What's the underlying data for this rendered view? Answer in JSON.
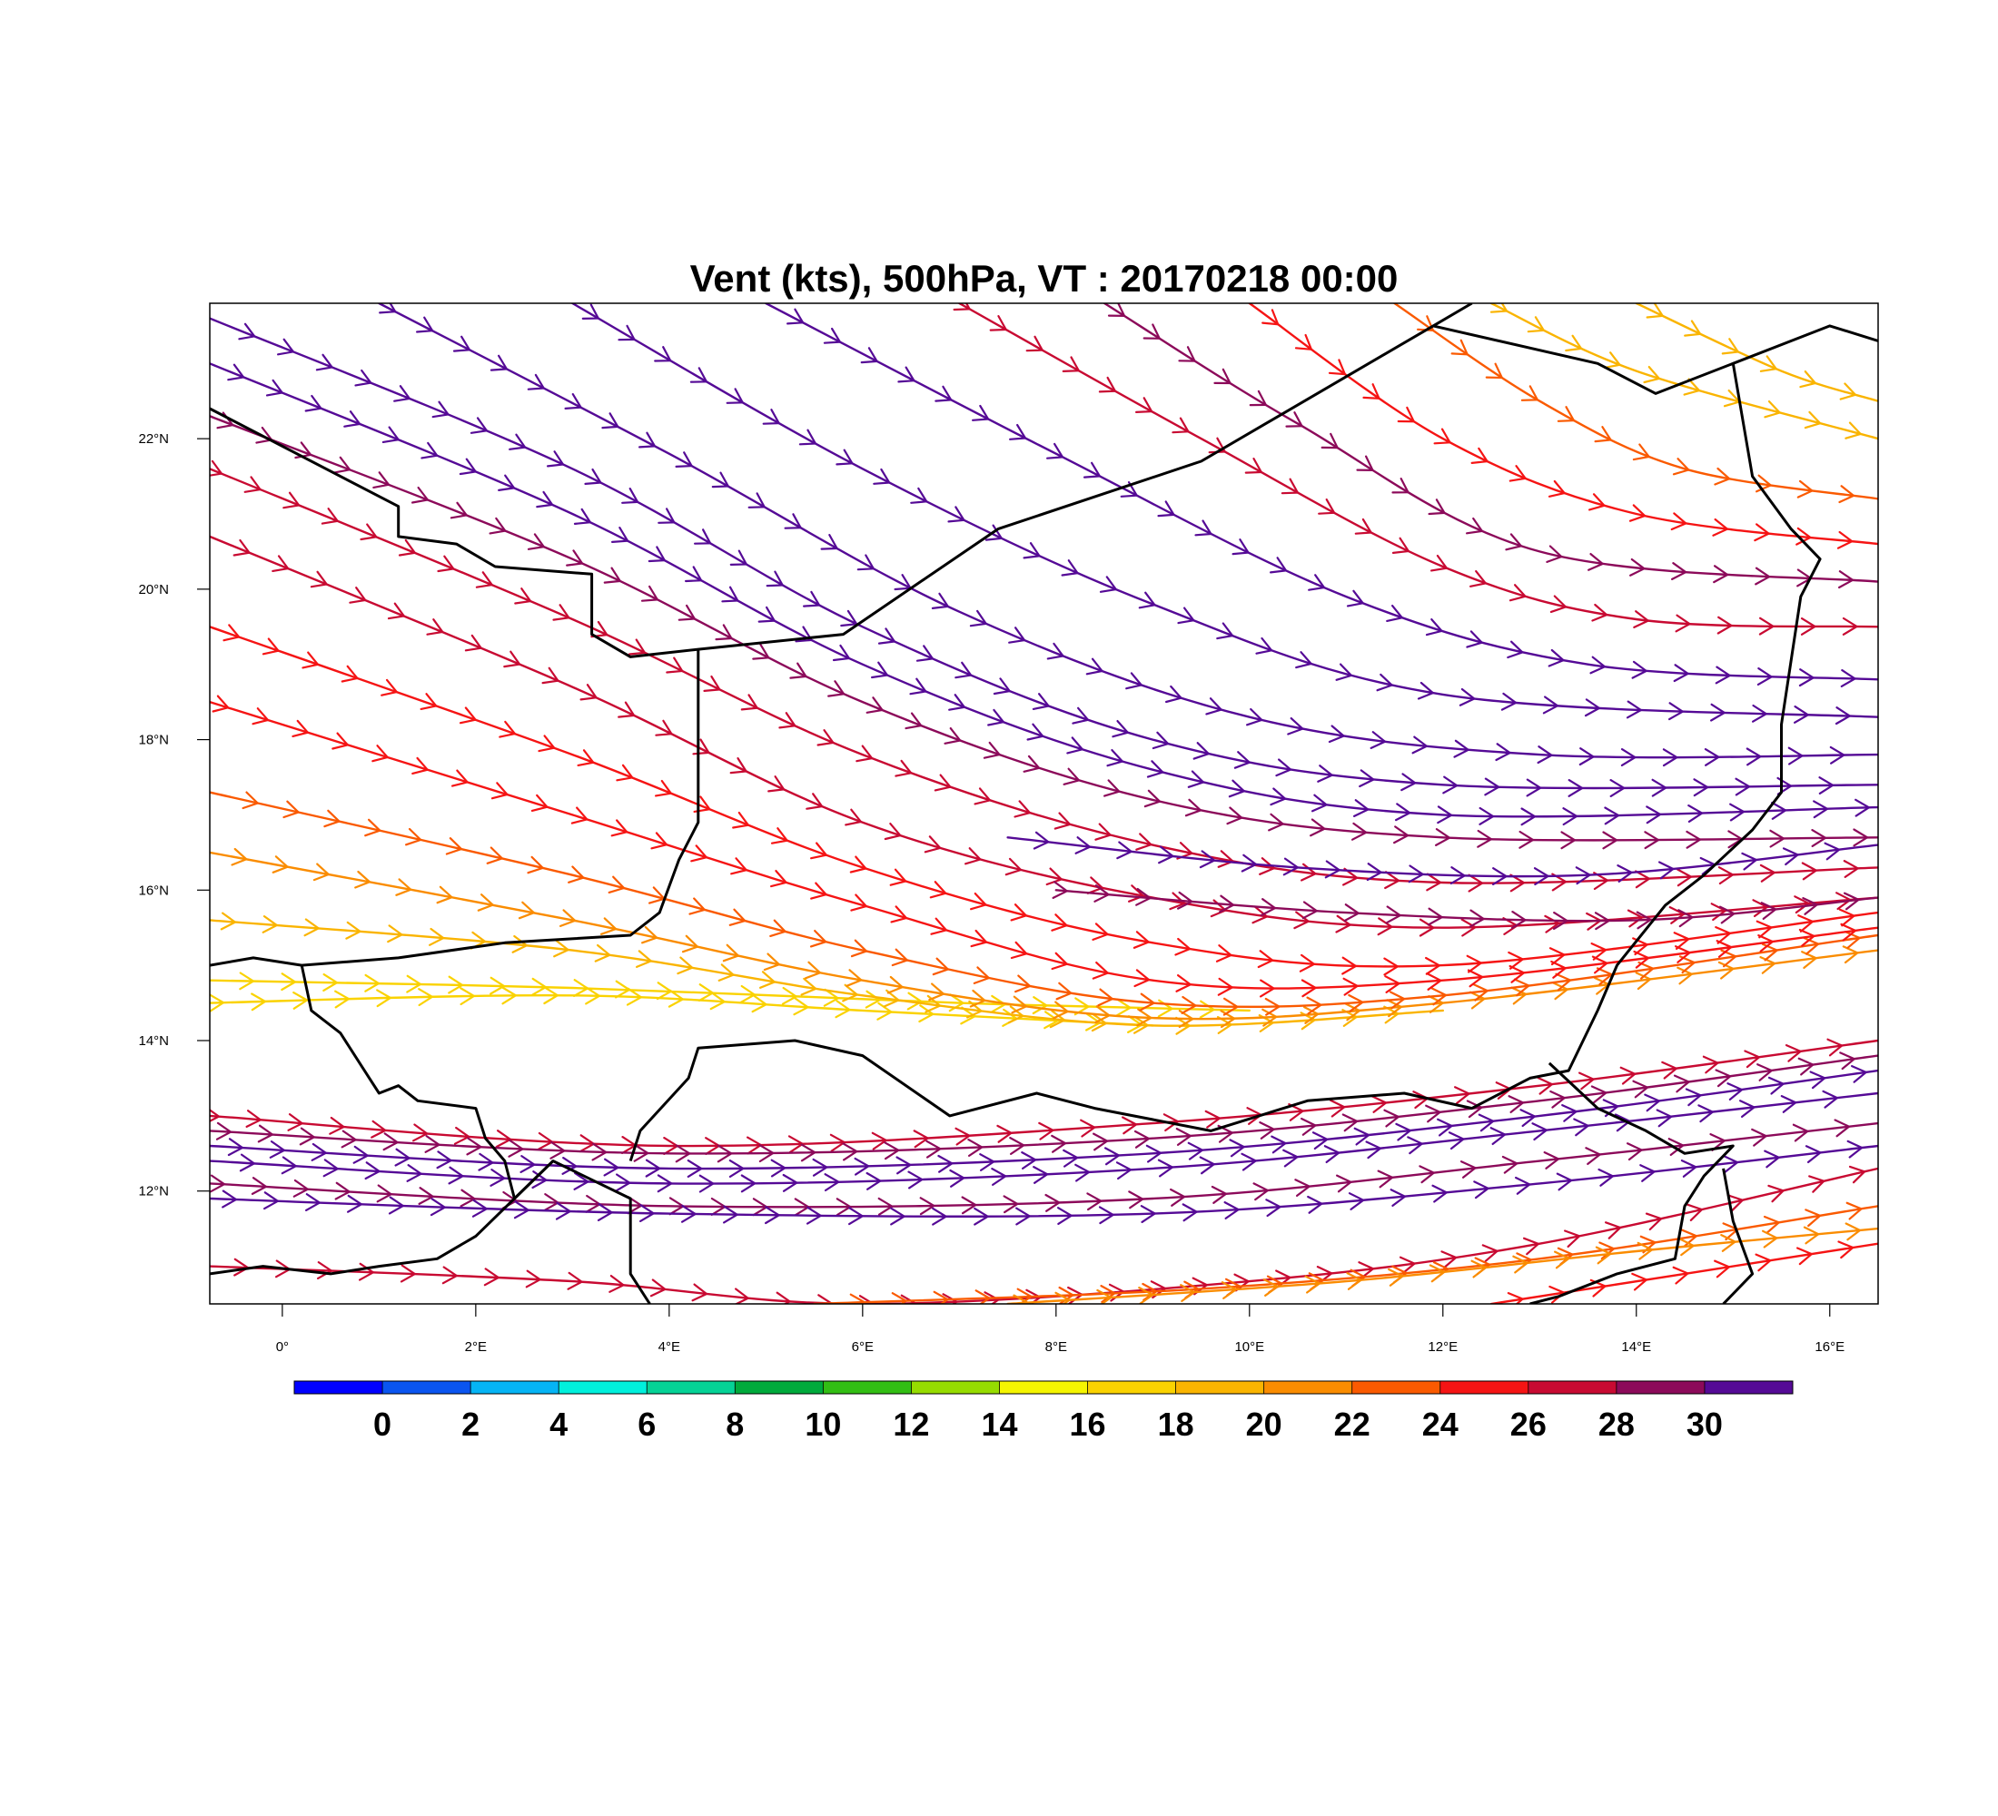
{
  "title": "Vent (kts), 500hPa, VT : 20170218  00:00",
  "map": {
    "lon_range": [
      -0.75,
      16.5
    ],
    "lat_range": [
      10.5,
      23.8
    ],
    "lon_ticks": [
      {
        "value": 0,
        "label": "0°"
      },
      {
        "value": 2,
        "label": "2°E"
      },
      {
        "value": 4,
        "label": "4°E"
      },
      {
        "value": 6,
        "label": "6°E"
      },
      {
        "value": 8,
        "label": "8°E"
      },
      {
        "value": 10,
        "label": "10°E"
      },
      {
        "value": 12,
        "label": "12°E"
      },
      {
        "value": 14,
        "label": "14°E"
      },
      {
        "value": 16,
        "label": "16°E"
      }
    ],
    "lat_ticks": [
      {
        "value": 12,
        "label": "12°N"
      },
      {
        "value": 14,
        "label": "14°N"
      },
      {
        "value": 16,
        "label": "16°N"
      },
      {
        "value": 18,
        "label": "18°N"
      },
      {
        "value": 20,
        "label": "20°N"
      },
      {
        "value": 22,
        "label": "22°N"
      }
    ],
    "boundaries": [
      [
        [
          -0.75,
          22.4
        ],
        [
          1.2,
          21.1
        ],
        [
          1.2,
          20.7
        ],
        [
          1.8,
          20.6
        ],
        [
          2.2,
          20.3
        ],
        [
          3.2,
          20.2
        ],
        [
          3.2,
          19.9
        ],
        [
          3.2,
          19.4
        ],
        [
          3.6,
          19.1
        ],
        [
          4.3,
          19.2
        ],
        [
          5.8,
          19.4
        ],
        [
          7.4,
          20.8
        ],
        [
          9.5,
          21.7
        ],
        [
          11.9,
          23.5
        ],
        [
          12.3,
          23.8
        ]
      ],
      [
        [
          11.9,
          23.5
        ],
        [
          13.6,
          23.0
        ],
        [
          14.2,
          22.6
        ],
        [
          15.0,
          23.0
        ],
        [
          16.0,
          23.5
        ],
        [
          16.5,
          23.3
        ]
      ],
      [
        [
          15.0,
          23.0
        ],
        [
          15.2,
          21.5
        ],
        [
          15.6,
          20.8
        ],
        [
          15.9,
          20.4
        ],
        [
          15.7,
          19.9
        ],
        [
          15.5,
          18.2
        ],
        [
          15.5,
          17.3
        ],
        [
          15.2,
          16.8
        ],
        [
          14.7,
          16.2
        ],
        [
          14.3,
          15.8
        ],
        [
          13.8,
          15.0
        ],
        [
          13.6,
          14.4
        ]
      ],
      [
        [
          4.3,
          19.2
        ],
        [
          4.3,
          16.9
        ],
        [
          4.1,
          16.4
        ],
        [
          3.9,
          15.7
        ],
        [
          3.6,
          15.4
        ],
        [
          2.3,
          15.3
        ],
        [
          1.2,
          15.1
        ],
        [
          0.2,
          15.0
        ],
        [
          -0.3,
          15.1
        ],
        [
          -0.75,
          15.0
        ]
      ],
      [
        [
          0.2,
          15.0
        ],
        [
          0.3,
          14.4
        ],
        [
          0.6,
          14.1
        ],
        [
          0.9,
          13.5
        ],
        [
          1.0,
          13.3
        ],
        [
          1.2,
          13.4
        ],
        [
          1.4,
          13.2
        ],
        [
          2.0,
          13.1
        ],
        [
          2.1,
          12.7
        ],
        [
          2.3,
          12.4
        ],
        [
          2.4,
          11.9
        ],
        [
          2.8,
          12.4
        ],
        [
          3.6,
          11.9
        ],
        [
          3.6,
          11.5
        ],
        [
          3.6,
          10.9
        ],
        [
          3.8,
          10.5
        ]
      ],
      [
        [
          3.6,
          12.4
        ],
        [
          3.7,
          12.8
        ],
        [
          4.2,
          13.5
        ],
        [
          4.3,
          13.9
        ],
        [
          5.3,
          14.0
        ],
        [
          6.0,
          13.8
        ],
        [
          6.9,
          13.0
        ],
        [
          7.8,
          13.3
        ],
        [
          8.4,
          13.1
        ],
        [
          9.6,
          12.8
        ],
        [
          10.6,
          13.2
        ],
        [
          11.6,
          13.3
        ],
        [
          12.3,
          13.1
        ],
        [
          12.9,
          13.5
        ],
        [
          13.3,
          13.6
        ],
        [
          13.6,
          14.4
        ]
      ],
      [
        [
          -0.75,
          10.9
        ],
        [
          -0.2,
          11.0
        ],
        [
          0.5,
          10.9
        ],
        [
          1.0,
          11.0
        ],
        [
          1.6,
          11.1
        ],
        [
          2.0,
          11.4
        ],
        [
          2.8,
          12.4
        ]
      ],
      [
        [
          13.1,
          13.7
        ],
        [
          13.6,
          13.1
        ],
        [
          14.1,
          12.8
        ],
        [
          14.5,
          12.5
        ],
        [
          15.0,
          12.6
        ],
        [
          14.7,
          12.2
        ],
        [
          14.5,
          11.8
        ],
        [
          14.4,
          11.1
        ],
        [
          13.8,
          10.9
        ],
        [
          13.2,
          10.6
        ],
        [
          12.9,
          10.5
        ]
      ],
      [
        [
          14.9,
          12.3
        ],
        [
          15.0,
          11.6
        ],
        [
          15.2,
          10.9
        ],
        [
          14.9,
          10.5
        ]
      ]
    ]
  },
  "streamlines": [
    {
      "speed": 26,
      "points": [
        [
          -0.75,
          13.0
        ],
        [
          4.0,
          12.6
        ],
        [
          9.0,
          12.9
        ],
        [
          13.0,
          13.4
        ],
        [
          16.5,
          14.0
        ]
      ]
    },
    {
      "speed": 29,
      "points": [
        [
          -0.75,
          12.8
        ],
        [
          4.0,
          12.5
        ],
        [
          9.0,
          12.7
        ],
        [
          13.0,
          13.2
        ],
        [
          16.5,
          13.8
        ]
      ]
    },
    {
      "speed": 31,
      "points": [
        [
          -0.75,
          12.6
        ],
        [
          4.0,
          12.3
        ],
        [
          9.0,
          12.5
        ],
        [
          13.0,
          13.0
        ],
        [
          16.5,
          13.6
        ]
      ]
    },
    {
      "speed": 31,
      "points": [
        [
          -0.75,
          12.4
        ],
        [
          4.0,
          12.1
        ],
        [
          9.0,
          12.3
        ],
        [
          13.0,
          12.8
        ],
        [
          16.5,
          13.3
        ]
      ]
    },
    {
      "speed": 29,
      "points": [
        [
          -0.75,
          12.1
        ],
        [
          4.0,
          11.8
        ],
        [
          9.0,
          11.9
        ],
        [
          13.0,
          12.4
        ],
        [
          16.5,
          12.9
        ]
      ]
    },
    {
      "speed": 31,
      "points": [
        [
          -0.75,
          11.9
        ],
        [
          4.0,
          11.7
        ],
        [
          9.0,
          11.7
        ],
        [
          13.0,
          12.1
        ],
        [
          16.5,
          12.6
        ]
      ]
    },
    {
      "speed": 26,
      "points": [
        [
          -0.75,
          11.0
        ],
        [
          3.0,
          10.8
        ],
        [
          6.0,
          10.5
        ],
        [
          10.0,
          10.8
        ],
        [
          13.0,
          11.3
        ],
        [
          16.5,
          12.3
        ]
      ]
    },
    {
      "speed": 23,
      "points": [
        [
          5.5,
          10.5
        ],
        [
          9.5,
          10.7
        ],
        [
          13.0,
          11.1
        ],
        [
          16.5,
          11.8
        ]
      ]
    },
    {
      "speed": 20,
      "points": [
        [
          7.5,
          10.5
        ],
        [
          11.0,
          10.8
        ],
        [
          14.0,
          11.2
        ],
        [
          16.5,
          11.5
        ]
      ]
    },
    {
      "speed": 24,
      "points": [
        [
          12.5,
          10.5
        ],
        [
          14.5,
          10.9
        ],
        [
          16.5,
          11.3
        ]
      ]
    },
    {
      "speed": 16,
      "points": [
        [
          -0.75,
          14.8
        ],
        [
          3.0,
          14.7
        ],
        [
          7.0,
          14.5
        ],
        [
          10.0,
          14.4
        ]
      ]
    },
    {
      "speed": 17,
      "points": [
        [
          -0.75,
          14.5
        ],
        [
          3.0,
          14.6
        ],
        [
          6.0,
          14.4
        ],
        [
          9.0,
          14.2
        ]
      ]
    },
    {
      "speed": 19,
      "points": [
        [
          -0.75,
          15.6
        ],
        [
          3.0,
          15.2
        ],
        [
          6.0,
          14.6
        ],
        [
          9.0,
          14.2
        ],
        [
          12.0,
          14.4
        ]
      ]
    },
    {
      "speed": 21,
      "points": [
        [
          -0.75,
          16.5
        ],
        [
          3.0,
          15.6
        ],
        [
          6.0,
          14.8
        ],
        [
          9.0,
          14.3
        ],
        [
          12.0,
          14.5
        ],
        [
          16.5,
          15.2
        ]
      ]
    },
    {
      "speed": 22,
      "points": [
        [
          -0.75,
          17.3
        ],
        [
          3.0,
          16.2
        ],
        [
          6.0,
          15.2
        ],
        [
          9.0,
          14.5
        ],
        [
          12.0,
          14.6
        ],
        [
          16.5,
          15.4
        ]
      ]
    },
    {
      "speed": 25,
      "points": [
        [
          -0.75,
          18.5
        ],
        [
          3.0,
          17.0
        ],
        [
          6.0,
          15.8
        ],
        [
          9.0,
          14.8
        ],
        [
          12.0,
          14.8
        ],
        [
          16.5,
          15.5
        ]
      ]
    },
    {
      "speed": 25,
      "points": [
        [
          -0.75,
          19.5
        ],
        [
          3.0,
          17.8
        ],
        [
          6.0,
          16.3
        ],
        [
          9.0,
          15.3
        ],
        [
          12.0,
          15.0
        ],
        [
          16.5,
          15.7
        ]
      ]
    },
    {
      "speed": 27,
      "points": [
        [
          -0.75,
          20.7
        ],
        [
          3.0,
          18.7
        ],
        [
          6.0,
          16.9
        ],
        [
          9.0,
          15.9
        ],
        [
          12.0,
          15.5
        ],
        [
          16.5,
          15.9
        ]
      ]
    },
    {
      "speed": 27,
      "points": [
        [
          -0.75,
          21.6
        ],
        [
          3.0,
          19.6
        ],
        [
          6.0,
          17.8
        ],
        [
          9.0,
          16.6
        ],
        [
          12.0,
          16.1
        ],
        [
          16.5,
          16.3
        ]
      ]
    },
    {
      "speed": 29,
      "points": [
        [
          -0.75,
          22.3
        ],
        [
          3.0,
          20.4
        ],
        [
          6.0,
          18.5
        ],
        [
          9.0,
          17.2
        ],
        [
          12.0,
          16.7
        ],
        [
          16.5,
          16.7
        ]
      ]
    },
    {
      "speed": 30,
      "points": [
        [
          -0.75,
          23.0
        ],
        [
          3.0,
          21.0
        ],
        [
          6.0,
          19.0
        ],
        [
          9.0,
          17.6
        ],
        [
          12.0,
          17.0
        ],
        [
          16.5,
          17.1
        ]
      ]
    },
    {
      "speed": 31,
      "points": [
        [
          -0.75,
          23.6
        ],
        [
          3.0,
          21.6
        ],
        [
          6.0,
          19.5
        ],
        [
          9.0,
          18.0
        ],
        [
          12.0,
          17.4
        ],
        [
          16.5,
          17.4
        ]
      ]
    },
    {
      "speed": 31,
      "points": [
        [
          1.0,
          23.8
        ],
        [
          4.0,
          21.8
        ],
        [
          7.0,
          19.7
        ],
        [
          10.0,
          18.3
        ],
        [
          13.0,
          17.8
        ],
        [
          16.5,
          17.8
        ]
      ]
    },
    {
      "speed": 30,
      "points": [
        [
          3.0,
          23.8
        ],
        [
          6.0,
          21.6
        ],
        [
          9.0,
          19.8
        ],
        [
          12.0,
          18.6
        ],
        [
          16.5,
          18.3
        ]
      ]
    },
    {
      "speed": 31,
      "points": [
        [
          5.0,
          23.8
        ],
        [
          8.0,
          21.8
        ],
        [
          11.0,
          19.9
        ],
        [
          13.5,
          19.0
        ],
        [
          16.5,
          18.8
        ]
      ]
    },
    {
      "speed": 27,
      "points": [
        [
          7.0,
          23.8
        ],
        [
          9.5,
          22.0
        ],
        [
          12.0,
          20.3
        ],
        [
          14.0,
          19.6
        ],
        [
          16.5,
          19.5
        ]
      ]
    },
    {
      "speed": 28,
      "points": [
        [
          8.5,
          23.8
        ],
        [
          10.5,
          22.2
        ],
        [
          13.0,
          20.5
        ],
        [
          16.5,
          20.1
        ]
      ]
    },
    {
      "speed": 24,
      "points": [
        [
          10.0,
          23.8
        ],
        [
          12.0,
          22.0
        ],
        [
          14.0,
          21.0
        ],
        [
          16.5,
          20.6
        ]
      ]
    },
    {
      "speed": 22,
      "points": [
        [
          11.5,
          23.8
        ],
        [
          13.0,
          22.5
        ],
        [
          14.5,
          21.6
        ],
        [
          16.5,
          21.2
        ]
      ]
    },
    {
      "speed": 19,
      "points": [
        [
          12.5,
          23.8
        ],
        [
          14.0,
          22.9
        ],
        [
          16.5,
          22.0
        ]
      ]
    },
    {
      "speed": 18,
      "points": [
        [
          14.0,
          23.8
        ],
        [
          15.5,
          22.9
        ],
        [
          16.5,
          22.5
        ]
      ]
    },
    {
      "speed": 31,
      "points": [
        [
          7.5,
          16.7
        ],
        [
          10.5,
          16.3
        ],
        [
          13.5,
          16.2
        ],
        [
          16.5,
          16.6
        ]
      ]
    },
    {
      "speed": 29,
      "points": [
        [
          8.0,
          16.0
        ],
        [
          11.0,
          15.7
        ],
        [
          14.0,
          15.6
        ],
        [
          16.5,
          15.9
        ]
      ]
    }
  ],
  "colorbar": {
    "colors": [
      "#0000ff",
      "#0a55f0",
      "#05b4f5",
      "#00f0dc",
      "#05d296",
      "#00aa3c",
      "#32be14",
      "#96dc00",
      "#f5f500",
      "#fad200",
      "#fab400",
      "#fa8c00",
      "#fa5a00",
      "#f51414",
      "#c80a32",
      "#8c0a5a",
      "#550a96"
    ],
    "labels": [
      "0",
      "2",
      "4",
      "6",
      "8",
      "10",
      "12",
      "14",
      "16",
      "18",
      "20",
      "22",
      "24",
      "26",
      "28",
      "30"
    ]
  }
}
